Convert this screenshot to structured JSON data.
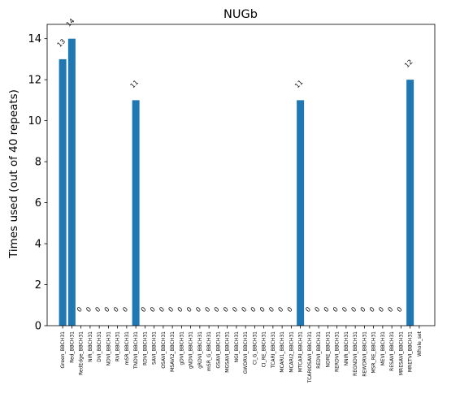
{
  "chart_data": {
    "type": "bar",
    "title": "NUGb",
    "xlabel": "",
    "ylabel": "Times used (out of 40 repeats)",
    "ylim": [
      0,
      14.7
    ],
    "yticks": [
      0,
      2,
      4,
      6,
      8,
      10,
      12,
      14
    ],
    "grid": false,
    "categories": [
      "Green_BBCH31",
      "Red_BBCH31",
      "RedEdge_BBCH31",
      "NIR_BBCH31",
      "DVI_BBCH31",
      "NDVI_BBCH31",
      "RVI_BBCH31",
      "mSR_BBCH31",
      "TNDVI_BBCH31",
      "RDVI_BBCH31",
      "SAVI_BBCH31",
      "OSAVI_BBCH31",
      "MSAVI2_BBCH31",
      "gDVI_BBCH31",
      "gNDVI_BBCH31",
      "gRDVI_BBCH31",
      "mSR_G_BBCH31",
      "GSAVI_BBCH31",
      "MGSAVI_BBCH31",
      "NGI_BBCH31",
      "GWDRVI_BBCH31",
      "CI_G_BBCH31",
      "CI_RE_BBCH31",
      "TCARI_BBCH31",
      "MCARI1_BBCH31",
      "MCARI2_BBCH31",
      "MTCARI_BBCH31",
      "TCARIOSAVI_BBCH31",
      "REDVI_BBCH31",
      "NDRE_BBCH31",
      "RERDVI_BBCH31",
      "NNIR_BBCH31",
      "REGNDVI_BBCH31",
      "REWDRVI_BBCH31",
      "MSR_RE_BBCH31",
      "MEVI_BBCH31",
      "RESAVI_BBCH31",
      "MRESAVI_BBCH31",
      "MRETVI_BBCH31",
      "Whole_set"
    ],
    "values": [
      13,
      14,
      0,
      0,
      0,
      0,
      0,
      0,
      11,
      0,
      0,
      0,
      0,
      0,
      0,
      0,
      0,
      0,
      0,
      0,
      0,
      0,
      0,
      0,
      0,
      0,
      11,
      0,
      0,
      0,
      0,
      0,
      0,
      0,
      0,
      0,
      0,
      0,
      12,
      null
    ],
    "data_labels": [
      "13",
      "14",
      "0",
      "0",
      "0",
      "0",
      "0",
      "0",
      "11",
      "0",
      "0",
      "0",
      "0",
      "0",
      "0",
      "0",
      "0",
      "0",
      "0",
      "0",
      "0",
      "0",
      "0",
      "0",
      "0",
      "0",
      "11",
      "0",
      "0",
      "0",
      "0",
      "0",
      "0",
      "0",
      "0",
      "0",
      "0",
      "0",
      "12",
      ""
    ],
    "colors": {
      "bar": "#1f77b4"
    }
  }
}
